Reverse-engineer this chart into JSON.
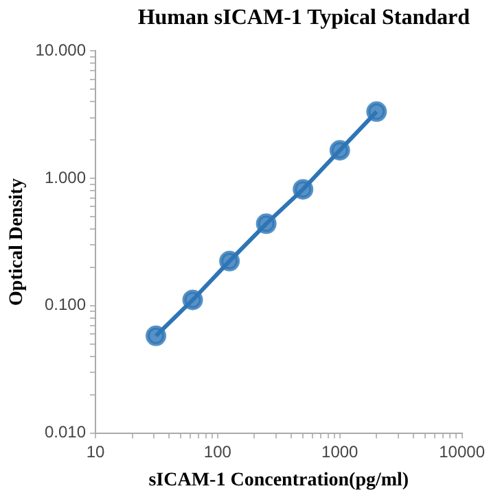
{
  "chart_data": {
    "type": "line",
    "title": "Human sICAM-1 Typical Standard",
    "xlabel": "sICAM-1 Concentration(pg/ml)",
    "ylabel": "Optical Density",
    "log": "xy",
    "marker": "circle",
    "line_style": "solid",
    "grid": false,
    "legend": false,
    "x": [
      31.25,
      62.5,
      125,
      250,
      500,
      1000,
      2000
    ],
    "series": [
      {
        "color": "#2e75b6",
        "values": [
          0.058,
          0.111,
          0.224,
          0.44,
          0.82,
          1.66,
          3.34
        ]
      }
    ],
    "xlim": [
      10,
      10000
    ],
    "xticks": [
      10,
      {
        "value": 20,
        "label": null
      },
      {
        "value": 30,
        "label": null
      },
      {
        "value": 40,
        "label": null
      },
      {
        "value": 50,
        "label": null
      },
      {
        "value": 60,
        "label": null
      },
      {
        "value": 70,
        "label": null
      },
      {
        "value": 80,
        "label": null
      },
      {
        "value": 90,
        "label": null
      },
      100,
      {
        "value": 200,
        "label": null
      },
      {
        "value": 300,
        "label": null
      },
      {
        "value": 400,
        "label": null
      },
      {
        "value": 500,
        "label": null
      },
      {
        "value": 600,
        "label": null
      },
      {
        "value": 700,
        "label": null
      },
      {
        "value": 800,
        "label": null
      },
      {
        "value": 900,
        "label": null
      },
      1000,
      {
        "value": 2000,
        "label": null
      },
      {
        "value": 3000,
        "label": null
      },
      {
        "value": 4000,
        "label": null
      },
      {
        "value": 5000,
        "label": null
      },
      {
        "value": 6000,
        "label": null
      },
      {
        "value": 7000,
        "label": null
      },
      {
        "value": 8000,
        "label": null
      },
      {
        "value": 9000,
        "label": null
      },
      10000
    ],
    "ylim": [
      0.01,
      10
    ],
    "yticks": [
      {
        "value": 0.01,
        "label": "0.010"
      },
      {
        "value": 0.02,
        "label": null
      },
      {
        "value": 0.03,
        "label": null
      },
      {
        "value": 0.04,
        "label": null
      },
      {
        "value": 0.05,
        "label": null
      },
      {
        "value": 0.06,
        "label": null
      },
      {
        "value": 0.07,
        "label": null
      },
      {
        "value": 0.08,
        "label": null
      },
      {
        "value": 0.09,
        "label": null
      },
      {
        "value": 0.1,
        "label": "0.100"
      },
      {
        "value": 0.2,
        "label": null
      },
      {
        "value": 0.3,
        "label": null
      },
      {
        "value": 0.4,
        "label": null
      },
      {
        "value": 0.5,
        "label": null
      },
      {
        "value": 0.6,
        "label": null
      },
      {
        "value": 0.7,
        "label": null
      },
      {
        "value": 0.8,
        "label": null
      },
      {
        "value": 0.9,
        "label": null
      },
      {
        "value": 1,
        "label": "1.000"
      },
      {
        "value": 2,
        "label": null
      },
      {
        "value": 3,
        "label": null
      },
      {
        "value": 4,
        "label": null
      },
      {
        "value": 5,
        "label": null
      },
      {
        "value": 6,
        "label": null
      },
      {
        "value": 7,
        "label": null
      },
      {
        "value": 8,
        "label": null
      },
      {
        "value": 9,
        "label": null
      },
      {
        "value": 10,
        "label": "10.000"
      }
    ]
  }
}
